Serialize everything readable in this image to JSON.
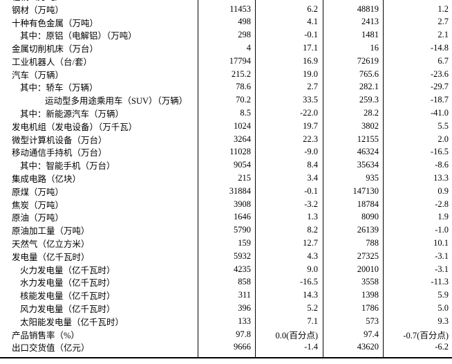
{
  "colors": {
    "text": "#000000",
    "rule": "#000000",
    "background": "#ffffff"
  },
  "table": {
    "clipped_top_row": {
      "label": "粗钢（万吨）",
      "indent": 0,
      "values": [
        "",
        "",
        "",
        ""
      ]
    },
    "rows": [
      {
        "label": "钢材（万吨）",
        "indent": 0,
        "values": [
          "11453",
          "6.2",
          "48819",
          "1.2"
        ]
      },
      {
        "label": "十种有色金属（万吨）",
        "indent": 0,
        "values": [
          "498",
          "4.1",
          "2413",
          "2.7"
        ]
      },
      {
        "label": "其中：原铝（电解铝）（万吨）",
        "indent": 1,
        "values": [
          "298",
          "-0.1",
          "1481",
          "2.1"
        ]
      },
      {
        "label": "金属切削机床（万台）",
        "indent": 0,
        "values": [
          "4",
          "17.1",
          "16",
          "-14.8"
        ]
      },
      {
        "label": "工业机器人（台/套）",
        "indent": 0,
        "values": [
          "17794",
          "16.9",
          "72619",
          "6.7"
        ]
      },
      {
        "label": "汽车（万辆）",
        "indent": 0,
        "values": [
          "215.2",
          "19.0",
          "765.6",
          "-23.6"
        ]
      },
      {
        "label": "其中：轿车（万辆）",
        "indent": 1,
        "values": [
          "78.6",
          "2.7",
          "282.1",
          "-29.7"
        ]
      },
      {
        "label": "运动型多用途乘用车（SUV）（万辆）",
        "indent": 2,
        "values": [
          "70.2",
          "33.5",
          "259.3",
          "-18.7"
        ]
      },
      {
        "label": "其中：新能源汽车（万辆）",
        "indent": 1,
        "values": [
          "8.5",
          "-22.0",
          "28.2",
          "-41.0"
        ]
      },
      {
        "label": "发电机组（发电设备）（万千瓦）",
        "indent": 0,
        "values": [
          "1024",
          "19.7",
          "3802",
          "5.5"
        ]
      },
      {
        "label": "微型计算机设备（万台）",
        "indent": 0,
        "values": [
          "3264",
          "22.3",
          "12155",
          "2.0"
        ]
      },
      {
        "label": "移动通信手持机（万台）",
        "indent": 0,
        "values": [
          "11028",
          "-9.0",
          "46324",
          "-16.5"
        ]
      },
      {
        "label": "其中：智能手机（万台）",
        "indent": 1,
        "values": [
          "9054",
          "8.4",
          "35634",
          "-8.6"
        ]
      },
      {
        "label": "集成电路（亿块）",
        "indent": 0,
        "values": [
          "215",
          "3.4",
          "935",
          "13.3"
        ]
      },
      {
        "label": "原煤（万吨）",
        "indent": 0,
        "values": [
          "31884",
          "-0.1",
          "147130",
          "0.9"
        ]
      },
      {
        "label": "焦炭（万吨）",
        "indent": 0,
        "values": [
          "3908",
          "-3.2",
          "18784",
          "-2.8"
        ]
      },
      {
        "label": "原油（万吨）",
        "indent": 0,
        "values": [
          "1646",
          "1.3",
          "8090",
          "1.9"
        ]
      },
      {
        "label": "原油加工量（万吨）",
        "indent": 0,
        "values": [
          "5790",
          "8.2",
          "26139",
          "-1.0"
        ]
      },
      {
        "label": "天然气（亿立方米）",
        "indent": 0,
        "values": [
          "159",
          "12.7",
          "788",
          "10.1"
        ]
      },
      {
        "label": "发电量（亿千瓦时）",
        "indent": 0,
        "values": [
          "5932",
          "4.3",
          "27325",
          "-3.1"
        ]
      },
      {
        "label": "火力发电量（亿千瓦时）",
        "indent": 1,
        "values": [
          "4235",
          "9.0",
          "20010",
          "-3.1"
        ]
      },
      {
        "label": "水力发电量（亿千瓦时）",
        "indent": 1,
        "values": [
          "858",
          "-16.5",
          "3558",
          "-11.3"
        ]
      },
      {
        "label": "核能发电量（亿千瓦时）",
        "indent": 1,
        "values": [
          "311",
          "14.3",
          "1398",
          "5.9"
        ]
      },
      {
        "label": "风力发电量（亿千瓦时）",
        "indent": 1,
        "values": [
          "396",
          "5.2",
          "1786",
          "5.0"
        ]
      },
      {
        "label": "太阳能发电量（亿千瓦时）",
        "indent": 1,
        "values": [
          "133",
          "7.1",
          "573",
          "9.3"
        ]
      },
      {
        "label": "产品销售率（%）",
        "indent": 0,
        "values": [
          "97.8",
          "0.0(百分点)",
          "97.4",
          "-0.7(百分点)"
        ]
      },
      {
        "label": "出口交货值（亿元）",
        "indent": 0,
        "values": [
          "9666",
          "-1.4",
          "43620",
          "-6.2"
        ]
      }
    ]
  }
}
